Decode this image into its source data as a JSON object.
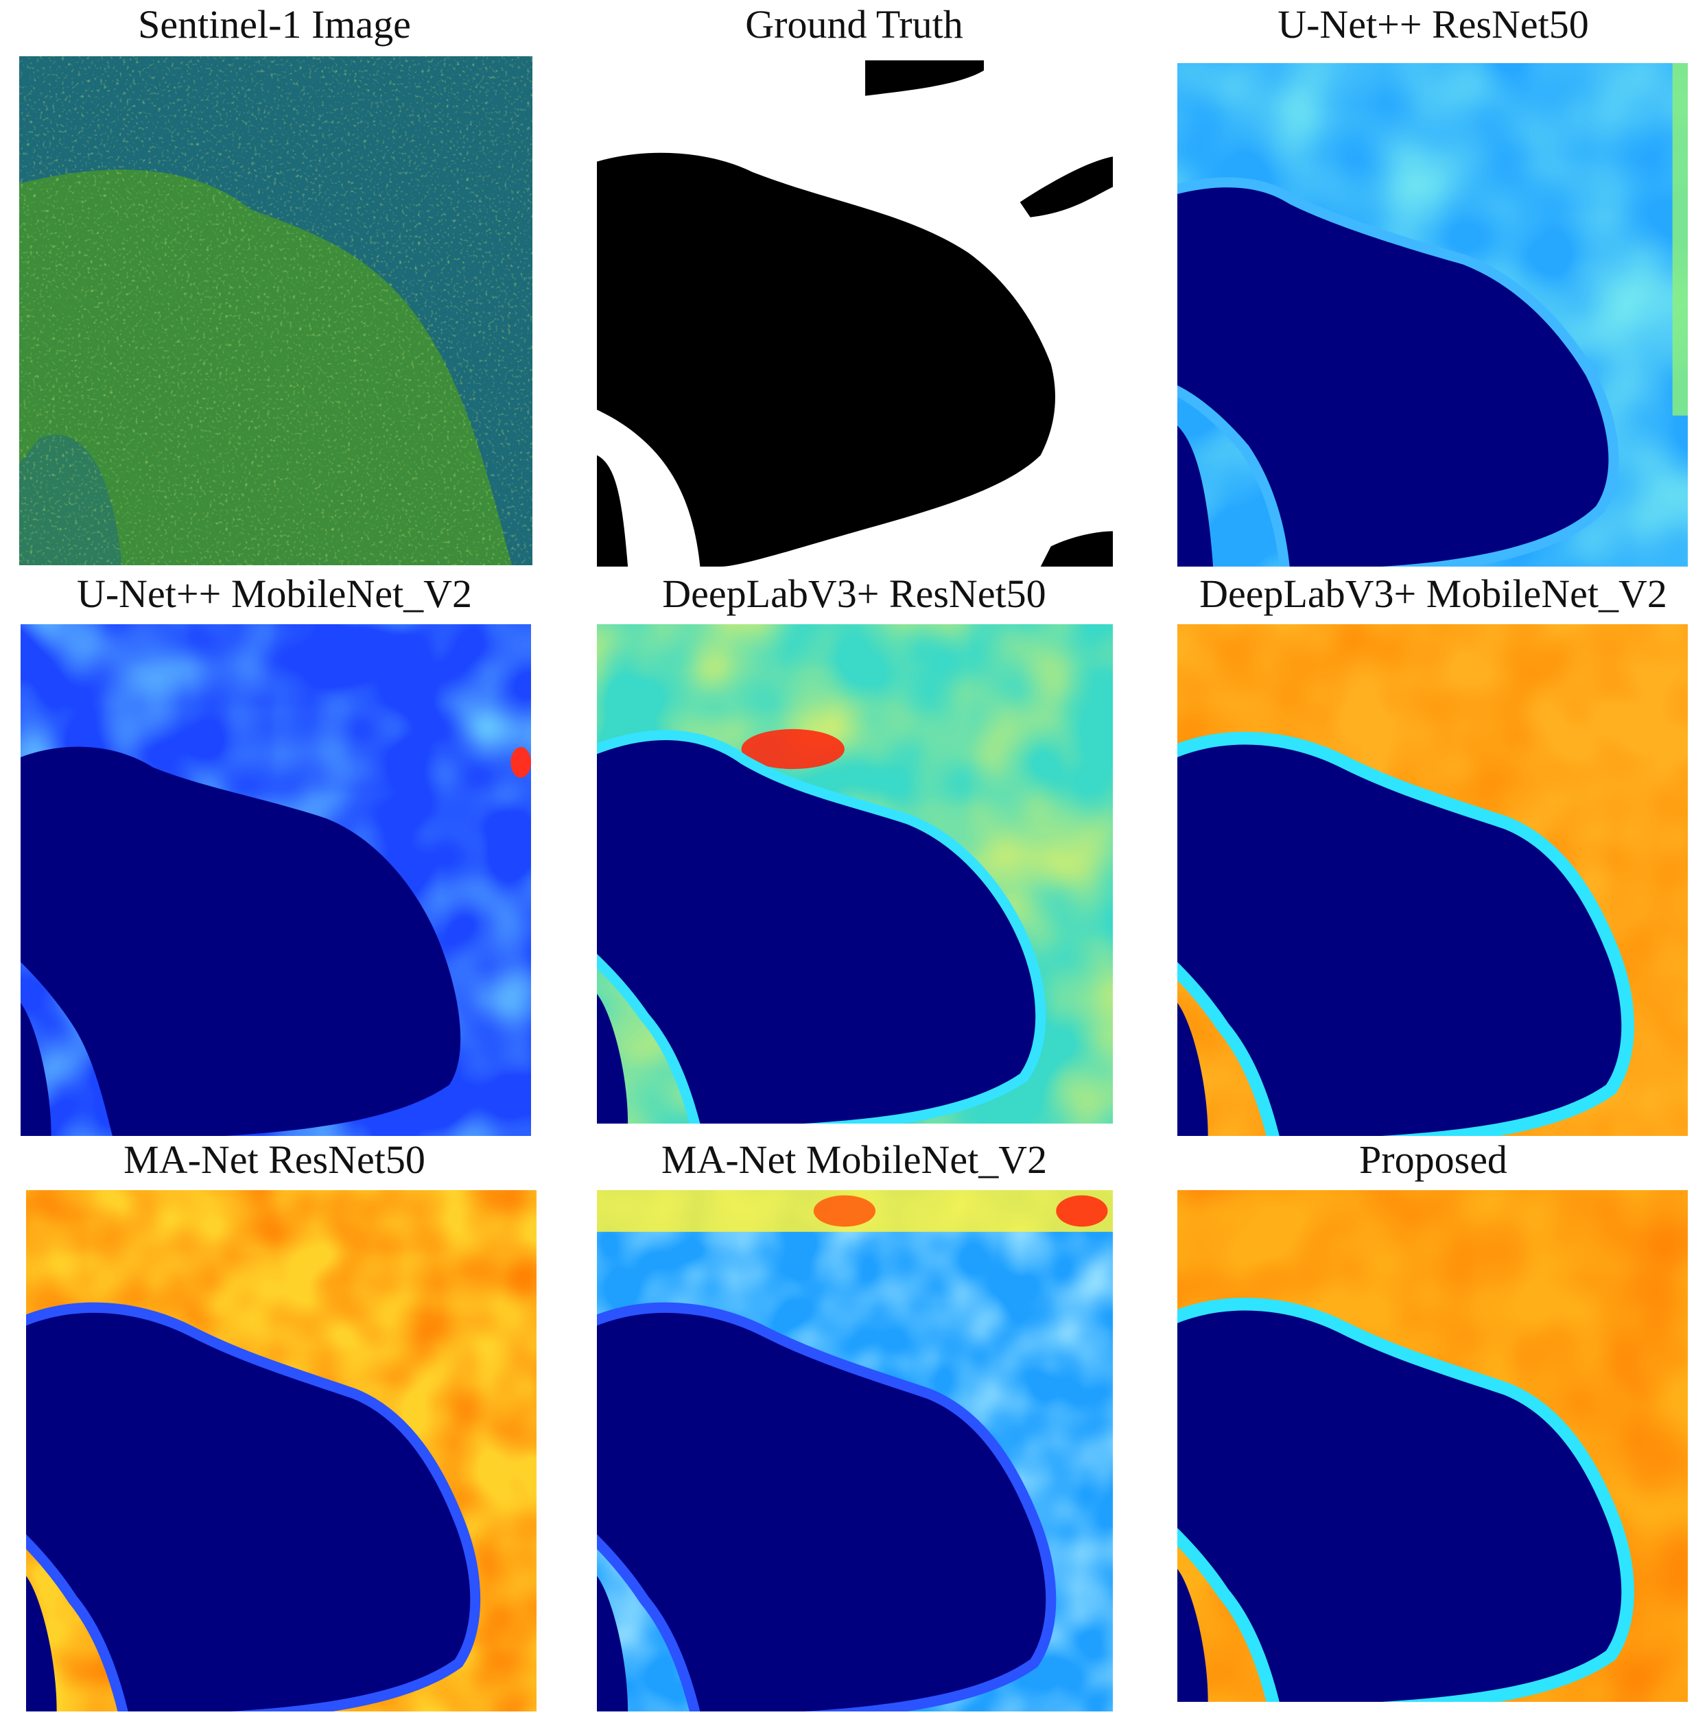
{
  "figure": {
    "panels": [
      {
        "title": "Sentinel-1 Image",
        "kind": "sar"
      },
      {
        "title": "Ground Truth",
        "kind": "mask"
      },
      {
        "title": "U-Net++ ResNet50",
        "kind": "heatmap",
        "outer_level": 0.45,
        "edge_color": "#3fb8ff"
      },
      {
        "title": "U-Net++ MobileNet_V2",
        "kind": "heatmap",
        "outer_level": 0.32,
        "edge_color": "#1e5bff"
      },
      {
        "title": "DeepLabV3+ ResNet50",
        "kind": "heatmap",
        "outer_level": 0.62,
        "edge_color": "#35e3ff"
      },
      {
        "title": "DeepLabV3+ MobileNet_V2",
        "kind": "heatmap",
        "outer_level": 0.8,
        "edge_color": "#2fe4ff"
      },
      {
        "title": "MA-Net ResNet50",
        "kind": "heatmap",
        "outer_level": 0.82,
        "edge_color": "#2b53ff"
      },
      {
        "title": "MA-Net MobileNet_V2",
        "kind": "heatmap",
        "outer_level": 0.52,
        "edge_color": "#2b53ff"
      },
      {
        "title": "Proposed",
        "kind": "heatmap",
        "outer_level": 0.86,
        "edge_color": "#2fe4ff"
      }
    ],
    "colors": {
      "water": "#00007f",
      "sar_background": "#1f6c79",
      "sar_land": "#3a8a3a",
      "mask_fg": "#000000",
      "mask_bg": "#ffffff"
    }
  }
}
